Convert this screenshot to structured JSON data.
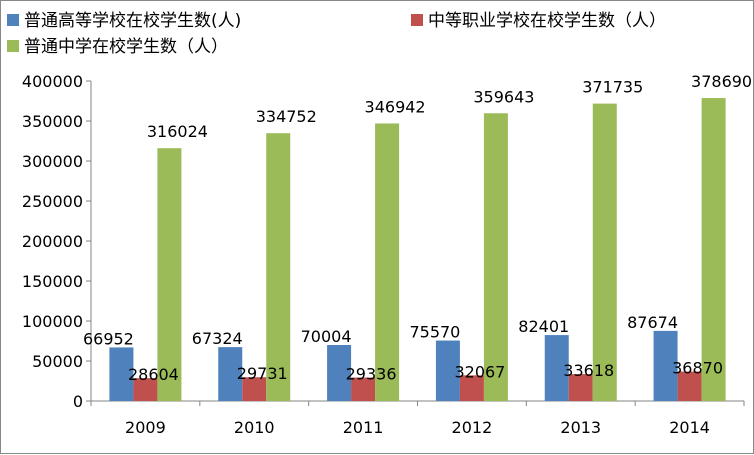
{
  "chart_data": {
    "type": "bar",
    "categories": [
      "2009",
      "2010",
      "2011",
      "2012",
      "2013",
      "2014"
    ],
    "series": [
      {
        "name": "普通高等学校在校学生数(人)",
        "color": "#4F81BD",
        "values": [
          66952,
          67324,
          70004,
          75570,
          82401,
          87674
        ]
      },
      {
        "name": "中等职业学校在校学生数（人）",
        "color": "#C0504D",
        "values": [
          28604,
          29731,
          29336,
          32067,
          33618,
          36870
        ]
      },
      {
        "name": "普通中学在校学生数（人）",
        "color": "#9BBB59",
        "values": [
          316024,
          334752,
          346942,
          359643,
          371735,
          378690
        ]
      }
    ],
    "y_ticks": [
      "0",
      "50000",
      "100000",
      "150000",
      "200000",
      "250000",
      "300000",
      "350000",
      "400000"
    ],
    "ylim": [
      0,
      400000
    ],
    "grid": false,
    "legend_position": "top",
    "data_labels": true
  }
}
